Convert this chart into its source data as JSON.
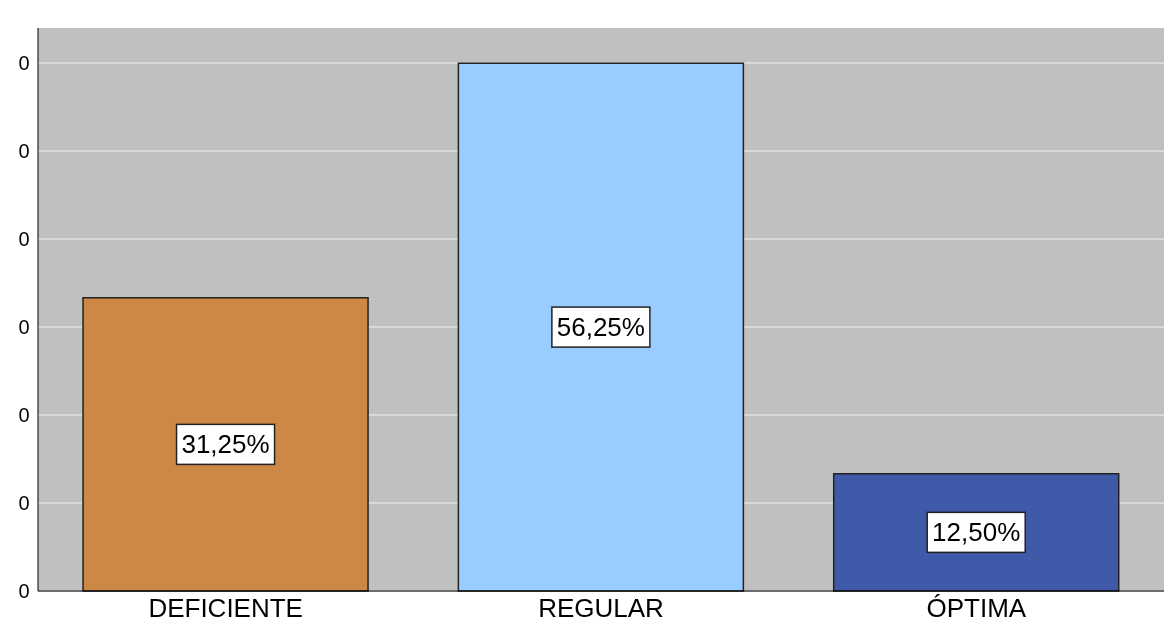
{
  "chart_data": {
    "type": "bar",
    "categories": [
      "DEFICIENTE",
      "REGULAR",
      "ÓPTIMA"
    ],
    "values": [
      31.25,
      56.25,
      12.5
    ],
    "colors": [
      "#cc8844",
      "#99ccff",
      "#3f5aa8"
    ],
    "value_labels": [
      "31,25%",
      "56,25%",
      "12,50%"
    ],
    "annotations": [
      "0",
      "0",
      "0",
      "0",
      "0",
      "0",
      "0"
    ],
    "grid": "y"
  }
}
